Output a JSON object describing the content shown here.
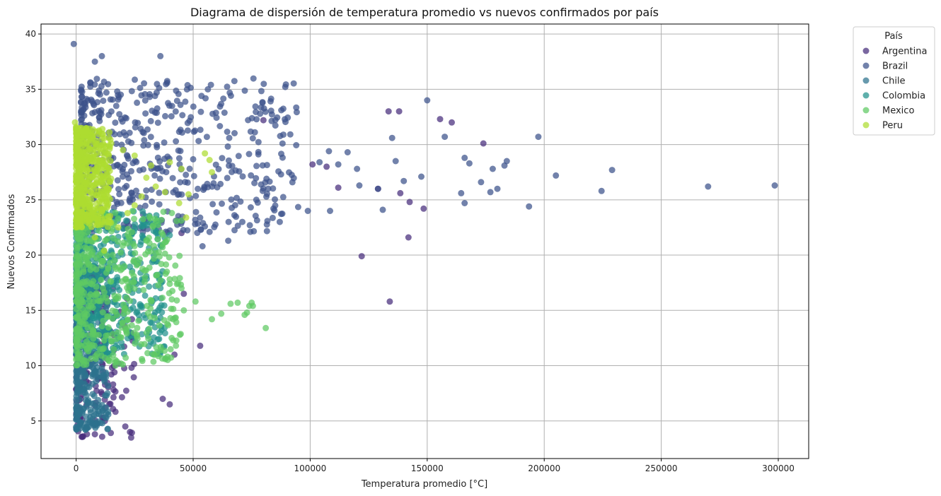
{
  "chart_data": {
    "type": "scatter",
    "title": "Diagrama de dispersión de temperatura promedio vs nuevos confirmados por país",
    "xlabel": "Temperatura promedio [°C]",
    "ylabel": "Nuevos Confirmados",
    "xlim": [
      -15000,
      313000
    ],
    "ylim": [
      1.6,
      40.9
    ],
    "xticks": [
      0,
      50000,
      100000,
      150000,
      200000,
      250000,
      300000
    ],
    "xtick_labels": [
      "0",
      "50000",
      "100000",
      "150000",
      "200000",
      "250000",
      "300000"
    ],
    "yticks": [
      5,
      10,
      15,
      20,
      25,
      30,
      35,
      40
    ],
    "ytick_labels": [
      "5",
      "10",
      "15",
      "20",
      "25",
      "30",
      "35",
      "40"
    ],
    "grid": true,
    "legend": {
      "title": "País",
      "placement": "upper-right-outside"
    },
    "series": [
      {
        "name": "Argentina",
        "color": "#472d7b",
        "cluster": {
          "count": 170,
          "x_range": [
            0,
            25000
          ],
          "y_range": [
            3.5,
            17
          ]
        },
        "points": [
          [
            133500,
            33.0
          ],
          [
            138000,
            33.0
          ],
          [
            155500,
            32.3
          ],
          [
            160500,
            32.0
          ],
          [
            174000,
            30.1
          ],
          [
            80000,
            32.2
          ],
          [
            101000,
            28.2
          ],
          [
            107000,
            28.0
          ],
          [
            112000,
            26.1
          ],
          [
            129000,
            26.0
          ],
          [
            138500,
            25.6
          ],
          [
            142500,
            24.8
          ],
          [
            148500,
            24.2
          ],
          [
            142000,
            21.6
          ],
          [
            122000,
            19.9
          ],
          [
            134000,
            15.8
          ],
          [
            53000,
            11.8
          ],
          [
            42000,
            11.0
          ],
          [
            40000,
            6.5
          ],
          [
            21000,
            4.5
          ],
          [
            23000,
            4.0
          ],
          [
            23500,
            3.5
          ],
          [
            8000,
            3.8
          ],
          [
            37000,
            7.0
          ],
          [
            45000,
            22.0
          ],
          [
            46000,
            16.5
          ]
        ]
      },
      {
        "name": "Brazil",
        "color": "#3b528b",
        "cluster": {
          "count": 560,
          "x_range": [
            2000,
            95000
          ],
          "y_range": [
            22,
            36
          ]
        },
        "points": [
          [
            -1000,
            39.1
          ],
          [
            11000,
            38.0
          ],
          [
            36000,
            38.0
          ],
          [
            8000,
            37.5
          ],
          [
            150000,
            34.0
          ],
          [
            135000,
            30.6
          ],
          [
            157500,
            30.7
          ],
          [
            197500,
            30.7
          ],
          [
            104000,
            28.4
          ],
          [
            108000,
            29.4
          ],
          [
            116000,
            29.3
          ],
          [
            112000,
            28.2
          ],
          [
            120000,
            27.8
          ],
          [
            136500,
            28.5
          ],
          [
            166000,
            28.8
          ],
          [
            168000,
            28.3
          ],
          [
            178000,
            27.8
          ],
          [
            183000,
            28.1
          ],
          [
            184000,
            28.5
          ],
          [
            147500,
            27.1
          ],
          [
            129000,
            26.0
          ],
          [
            121000,
            26.3
          ],
          [
            140000,
            26.7
          ],
          [
            164500,
            25.6
          ],
          [
            173000,
            26.6
          ],
          [
            177000,
            25.7
          ],
          [
            180000,
            26.0
          ],
          [
            166000,
            24.7
          ],
          [
            205000,
            27.2
          ],
          [
            224500,
            25.8
          ],
          [
            229000,
            27.7
          ],
          [
            270000,
            26.2
          ],
          [
            298500,
            26.3
          ],
          [
            131000,
            24.1
          ],
          [
            193500,
            24.4
          ],
          [
            108500,
            24.0
          ],
          [
            99000,
            24.0
          ],
          [
            87000,
            23.0
          ],
          [
            71000,
            23.0
          ],
          [
            55000,
            22.6
          ],
          [
            57000,
            22.1
          ],
          [
            65000,
            21.3
          ],
          [
            54000,
            20.8
          ]
        ]
      },
      {
        "name": "Chile",
        "color": "#2c728e",
        "cluster": {
          "count": 480,
          "x_range": [
            0,
            14000
          ],
          "y_range": [
            4.2,
            19
          ]
        },
        "points": [
          [
            4000,
            4.2
          ],
          [
            4500,
            4.4
          ],
          [
            7000,
            5.2
          ],
          [
            8500,
            5.6
          ],
          [
            11000,
            6.1
          ],
          [
            13000,
            7.3
          ]
        ]
      },
      {
        "name": "Colombia",
        "color": "#21918c",
        "cluster": {
          "count": 520,
          "x_range": [
            0,
            38000
          ],
          "y_range": [
            11,
            24
          ]
        },
        "points": [
          [
            40000,
            21.8
          ],
          [
            36000,
            20.9
          ],
          [
            33000,
            19.5
          ],
          [
            30000,
            18.1
          ],
          [
            24000,
            16.6
          ],
          [
            20000,
            14.1
          ]
        ]
      },
      {
        "name": "Mexico",
        "color": "#5ec962",
        "cluster": {
          "count": 500,
          "x_range": [
            0,
            45000
          ],
          "y_range": [
            10,
            24
          ]
        },
        "points": [
          [
            51000,
            15.8
          ],
          [
            58000,
            14.2
          ],
          [
            62000,
            14.7
          ],
          [
            66000,
            15.6
          ],
          [
            69000,
            15.7
          ],
          [
            72000,
            14.6
          ],
          [
            73000,
            14.8
          ],
          [
            74000,
            15.4
          ],
          [
            75000,
            15.7
          ],
          [
            75500,
            15.4
          ],
          [
            81000,
            13.4
          ],
          [
            45000,
            17.0
          ],
          [
            46000,
            15.0
          ],
          [
            43000,
            15.9
          ],
          [
            40000,
            17.4
          ]
        ]
      },
      {
        "name": "Peru",
        "color": "#addc30",
        "cluster": {
          "count": 520,
          "x_range": [
            0,
            15000
          ],
          "y_range": [
            22.5,
            31.5
          ]
        },
        "points": [
          [
            -500,
            32.0
          ],
          [
            0,
            31.6
          ],
          [
            15000,
            30.1
          ],
          [
            20000,
            29.5
          ],
          [
            25000,
            29.0
          ],
          [
            32000,
            28.1
          ],
          [
            40000,
            28.4
          ],
          [
            45000,
            27.8
          ],
          [
            55000,
            29.2
          ],
          [
            57000,
            28.6
          ],
          [
            58000,
            27.5
          ],
          [
            48000,
            25.5
          ],
          [
            47000,
            23.4
          ],
          [
            44000,
            24.7
          ],
          [
            38000,
            25.7
          ],
          [
            34000,
            26.2
          ],
          [
            30000,
            27.0
          ],
          [
            28000,
            25.3
          ],
          [
            25000,
            24.5
          ],
          [
            22000,
            23.8
          ],
          [
            18000,
            22.5
          ],
          [
            12000,
            20.4
          ],
          [
            8000,
            21.6
          ]
        ]
      }
    ]
  }
}
